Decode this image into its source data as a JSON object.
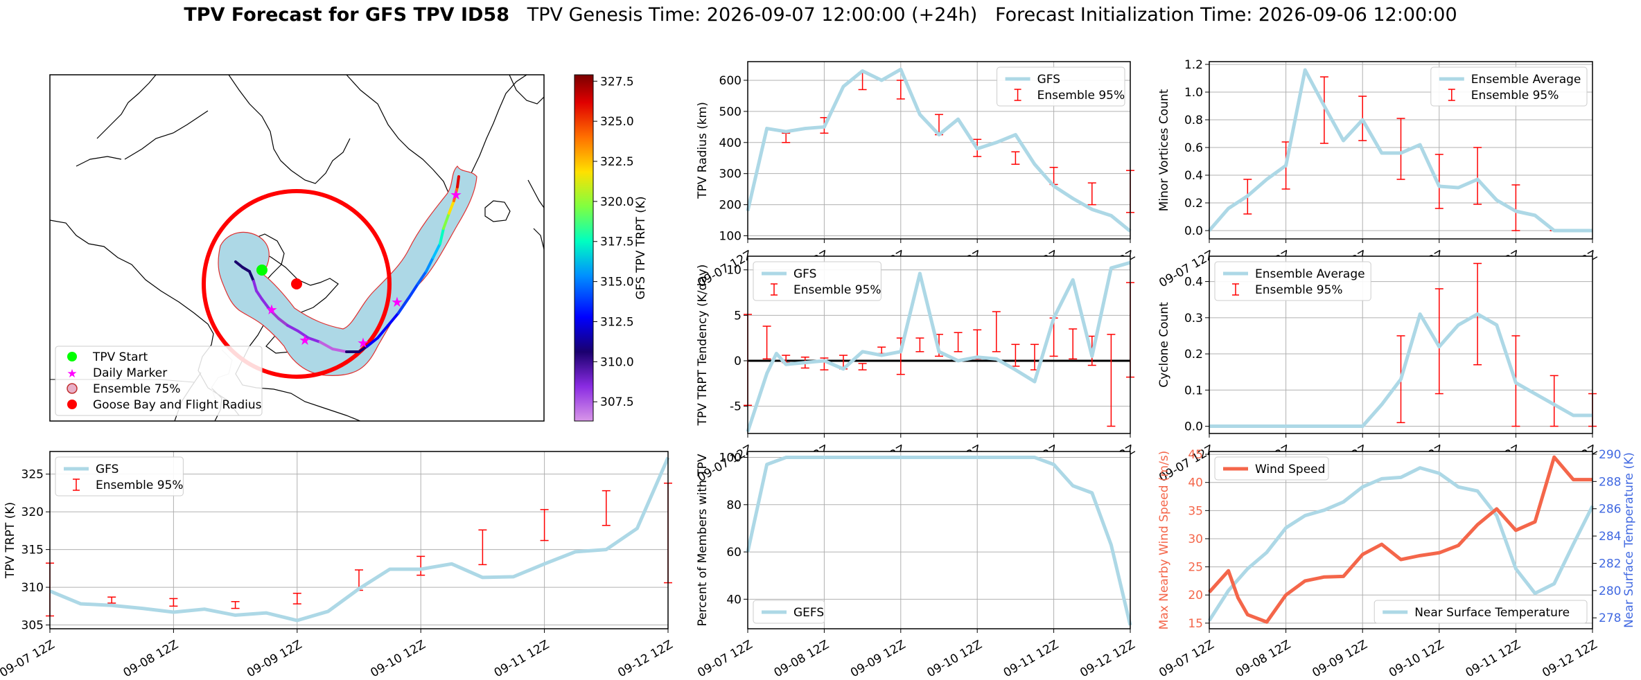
{
  "title": {
    "bold": "TPV Forecast for GFS TPV ID58",
    "genesis": "TPV Genesis Time: 2026-09-07 12:00:00 (+24h)",
    "init": "Forecast Initialization Time: 2026-09-06 12:00:00"
  },
  "colors": {
    "gfs_line": "#add8e6",
    "errorbar": "#ff0000",
    "wind": "#f4664a",
    "temp_axis": "#4169e1",
    "grid": "#b0b0b0",
    "track_fill": "#add8e6",
    "track_edge": "#e03030",
    "flight_circle": "#ff0000",
    "tpv_start": "#00ff00",
    "daily_marker": "#ff00ff"
  },
  "time_ticks": [
    "09-07 12Z",
    "09-08 12Z",
    "09-09 12Z",
    "09-10 12Z",
    "09-11 12Z",
    "09-12 12Z"
  ],
  "chart_data": [
    {
      "id": "map",
      "type": "map",
      "colorbar": {
        "label": "GFS TPV TRPT (K)",
        "range": [
          306.3,
          327.9
        ],
        "ticks": [
          307.5,
          310.0,
          312.5,
          315.0,
          317.5,
          320.0,
          322.5,
          325.0,
          327.5
        ],
        "tick_labels": [
          "307.5",
          "310.0",
          "312.5",
          "315.0",
          "317.5",
          "320.0",
          "322.5",
          "325.0",
          "327.5"
        ]
      },
      "legend": {
        "placement": "lower-left",
        "entries": [
          "TPV Start",
          "Daily Marker",
          "Ensemble 75%",
          "Goose Bay and Flight Radius"
        ]
      }
    },
    {
      "id": "trpt",
      "type": "line",
      "ylabel": "TPV TRPT (K)",
      "xlim": [
        0,
        120
      ],
      "ylim": [
        304.5,
        328
      ],
      "yticks": [
        305,
        310,
        315,
        320,
        325
      ],
      "legend": {
        "placement": "top-left",
        "entries": [
          "GFS",
          "Ensemble 95%"
        ]
      },
      "gfs": {
        "x": [
          0,
          6,
          12,
          18,
          24,
          30,
          36,
          42,
          48,
          54,
          60,
          66,
          72,
          78,
          84,
          90,
          96,
          102,
          108,
          114,
          120
        ],
        "y": [
          309.5,
          307.8,
          307.6,
          307.2,
          306.7,
          307.1,
          306.3,
          306.6,
          305.6,
          306.8,
          309.8,
          312.4,
          312.4,
          313.1,
          311.3,
          311.4,
          313.1,
          314.7,
          315.0,
          317.8,
          327.2
        ]
      },
      "errorbars": {
        "x": [
          0,
          12,
          24,
          36,
          48,
          60,
          72,
          84,
          96,
          108,
          120
        ],
        "lo": [
          306.2,
          307.9,
          307.5,
          307.2,
          307.8,
          309.6,
          311.6,
          313.0,
          316.2,
          318.2,
          310.6
        ],
        "hi": [
          313.2,
          308.7,
          308.5,
          308.1,
          309.2,
          312.3,
          314.1,
          317.6,
          320.3,
          322.8,
          323.8
        ]
      }
    },
    {
      "id": "radius",
      "type": "line",
      "ylabel": "TPV Radius (km)",
      "xlim": [
        0,
        120
      ],
      "ylim": [
        90,
        660
      ],
      "yticks": [
        100,
        200,
        300,
        400,
        500,
        600
      ],
      "legend": {
        "placement": "top-right",
        "entries": [
          "GFS",
          "Ensemble 95%"
        ]
      },
      "gfs": {
        "x": [
          0,
          6,
          12,
          18,
          24,
          30,
          36,
          42,
          48,
          54,
          60,
          66,
          72,
          78,
          84,
          90,
          96,
          102,
          108,
          114,
          120
        ],
        "y": [
          180,
          445,
          435,
          445,
          450,
          580,
          630,
          600,
          635,
          490,
          425,
          475,
          380,
          400,
          425,
          330,
          260,
          220,
          185,
          165,
          115
        ]
      },
      "errorbars": {
        "x": [
          0,
          12,
          24,
          36,
          48,
          60,
          72,
          84,
          96,
          108,
          120
        ],
        "lo": [
          null,
          400,
          430,
          570,
          540,
          425,
          355,
          330,
          265,
          200,
          175
        ],
        "hi": [
          null,
          430,
          480,
          625,
          600,
          490,
          410,
          370,
          320,
          270,
          310
        ]
      }
    },
    {
      "id": "tendency",
      "type": "line",
      "ylabel": "TPV TRPT Tendency (K/day)",
      "xlim": [
        0,
        120
      ],
      "ylim": [
        -8,
        11.5
      ],
      "yticks": [
        -5,
        0,
        5,
        10
      ],
      "zero_line": true,
      "legend": {
        "placement": "top-left",
        "entries": [
          "GFS",
          "Ensemble 95%"
        ]
      },
      "gfs": {
        "x": [
          0,
          6,
          9,
          12,
          18,
          24,
          30,
          36,
          42,
          48,
          54,
          60,
          66,
          72,
          78,
          84,
          90,
          96,
          102,
          108,
          114,
          120
        ],
        "y": [
          -7.8,
          -1.4,
          0.8,
          -0.4,
          -0.2,
          0.0,
          -0.9,
          1.0,
          0.6,
          1.0,
          9.6,
          1.0,
          0.0,
          0.4,
          0.2,
          -1.0,
          -2.3,
          4.7,
          8.9,
          0.5,
          10.2,
          10.8
        ]
      },
      "errorbars": {
        "x": [
          0,
          6,
          12,
          18,
          24,
          30,
          36,
          42,
          48,
          54,
          60,
          66,
          72,
          78,
          84,
          90,
          96,
          102,
          108,
          114,
          120
        ],
        "lo": [
          -4.9,
          0.2,
          -0.2,
          -0.8,
          -1.0,
          -0.9,
          -1.0,
          0.8,
          -1.5,
          1.0,
          0.5,
          1.0,
          0.2,
          1.0,
          -0.6,
          -1.0,
          0.5,
          0.2,
          -0.5,
          -7.2,
          -1.8
        ],
        "hi": [
          5.1,
          3.8,
          0.6,
          0.4,
          0.3,
          0.6,
          -0.3,
          1.5,
          2.5,
          2.5,
          2.9,
          3.1,
          3.4,
          5.4,
          1.8,
          1.8,
          4.7,
          3.5,
          2.7,
          2.9,
          8.6
        ]
      }
    },
    {
      "id": "members",
      "type": "line",
      "ylabel": "Percent of Members with TPV",
      "xlim": [
        0,
        120
      ],
      "ylim": [
        27.5,
        102.5
      ],
      "yticks": [
        40,
        60,
        80,
        100
      ],
      "legend": {
        "placement": "bottom-left",
        "entries": [
          "GEFS"
        ]
      },
      "gfs": {
        "x": [
          0,
          6,
          12,
          18,
          24,
          30,
          36,
          42,
          48,
          54,
          60,
          66,
          72,
          78,
          84,
          90,
          96,
          102,
          108,
          114,
          120
        ],
        "y": [
          60,
          97,
          100,
          100,
          100,
          100,
          100,
          100,
          100,
          100,
          100,
          100,
          100,
          100,
          100,
          100,
          97,
          88,
          85,
          63,
          29
        ]
      }
    },
    {
      "id": "minor",
      "type": "line",
      "ylabel": "Minor Vortices Count",
      "xlim": [
        0,
        120
      ],
      "ylim": [
        -0.06,
        1.22
      ],
      "yticks": [
        0.0,
        0.2,
        0.4,
        0.6,
        0.8,
        1.0,
        1.2
      ],
      "legend": {
        "placement": "top-right",
        "entries": [
          "Ensemble Average",
          "Ensemble 95%"
        ]
      },
      "gfs": {
        "x": [
          0,
          6,
          12,
          18,
          24,
          30,
          36,
          42,
          48,
          54,
          60,
          66,
          72,
          78,
          84,
          90,
          96,
          102,
          108,
          114,
          120
        ],
        "y": [
          0.0,
          0.16,
          0.25,
          0.37,
          0.47,
          1.16,
          0.9,
          0.65,
          0.8,
          0.56,
          0.56,
          0.62,
          0.32,
          0.31,
          0.37,
          0.22,
          0.14,
          0.11,
          0.0,
          0.0,
          0.0
        ]
      },
      "errorbars": {
        "x": [
          12,
          24,
          36,
          48,
          60,
          72,
          84,
          96,
          108
        ],
        "lo": [
          0.12,
          0.3,
          0.63,
          0.65,
          0.37,
          0.16,
          0.19,
          0.0,
          0.0
        ],
        "hi": [
          0.37,
          0.64,
          1.11,
          0.97,
          0.81,
          0.55,
          0.6,
          0.33,
          0.0
        ]
      }
    },
    {
      "id": "cyclone",
      "type": "line",
      "ylabel": "Cyclone Count",
      "xlim": [
        0,
        120
      ],
      "ylim": [
        -0.02,
        0.47
      ],
      "yticks": [
        0.0,
        0.1,
        0.2,
        0.3,
        0.4
      ],
      "legend": {
        "placement": "top-left",
        "entries": [
          "Ensemble Average",
          "Ensemble 95%"
        ]
      },
      "gfs": {
        "x": [
          0,
          6,
          12,
          18,
          24,
          30,
          36,
          42,
          48,
          54,
          60,
          66,
          72,
          78,
          84,
          90,
          96,
          102,
          108,
          114,
          120
        ],
        "y": [
          0.0,
          0.0,
          0.0,
          0.0,
          0.0,
          0.0,
          0.0,
          0.0,
          0.0,
          0.06,
          0.13,
          0.31,
          0.22,
          0.28,
          0.31,
          0.28,
          0.12,
          0.09,
          0.06,
          0.03,
          0.03
        ]
      },
      "errorbars": {
        "x": [
          12,
          24,
          36,
          60,
          72,
          84,
          96,
          108,
          120
        ],
        "lo": [
          0.0,
          0.0,
          0.0,
          0.01,
          0.09,
          0.17,
          0.0,
          0.0,
          0.0
        ],
        "hi": [
          0.0,
          0.0,
          0.0,
          0.25,
          0.38,
          0.45,
          0.25,
          0.14,
          0.09
        ]
      }
    },
    {
      "id": "wind",
      "type": "line",
      "ylabel": "Max Nearby Wind Speed (m/s)",
      "ylabel2": "Near Surface Temperature (K)",
      "xlim": [
        0,
        120
      ],
      "ylim": [
        14,
        45.5
      ],
      "yticks": [
        15,
        20,
        25,
        30,
        35,
        40,
        45
      ],
      "ylim2": [
        277.2,
        290.2
      ],
      "yticks2": [
        278,
        280,
        282,
        284,
        286,
        288,
        290
      ],
      "legend": {
        "placement": "top-left",
        "entries": [
          "Wind Speed"
        ]
      },
      "legend2": {
        "placement": "bottom-right",
        "entries": [
          "Near Surface Temperature"
        ]
      },
      "wind": {
        "x": [
          0,
          6,
          9,
          12,
          18,
          24,
          30,
          36,
          42,
          48,
          54,
          60,
          66,
          72,
          78,
          84,
          90,
          96,
          102,
          108,
          114,
          120
        ],
        "y": [
          20.5,
          24.3,
          19.5,
          16.5,
          15.2,
          20.0,
          22.5,
          23.2,
          23.3,
          27.2,
          29.0,
          26.3,
          27.0,
          27.5,
          28.8,
          32.5,
          35.3,
          31.5,
          33.0,
          44.5,
          40.5,
          40.5
        ]
      },
      "temp": {
        "x": [
          0,
          6,
          12,
          18,
          24,
          30,
          36,
          42,
          48,
          54,
          60,
          66,
          72,
          78,
          84,
          90,
          96,
          102,
          108,
          114,
          120
        ],
        "y": [
          277.8,
          280.0,
          281.6,
          282.8,
          284.6,
          285.5,
          285.9,
          286.5,
          287.6,
          288.2,
          288.3,
          289.0,
          288.6,
          287.6,
          287.3,
          285.5,
          281.6,
          279.8,
          280.5,
          283.4,
          286.2
        ]
      }
    }
  ]
}
